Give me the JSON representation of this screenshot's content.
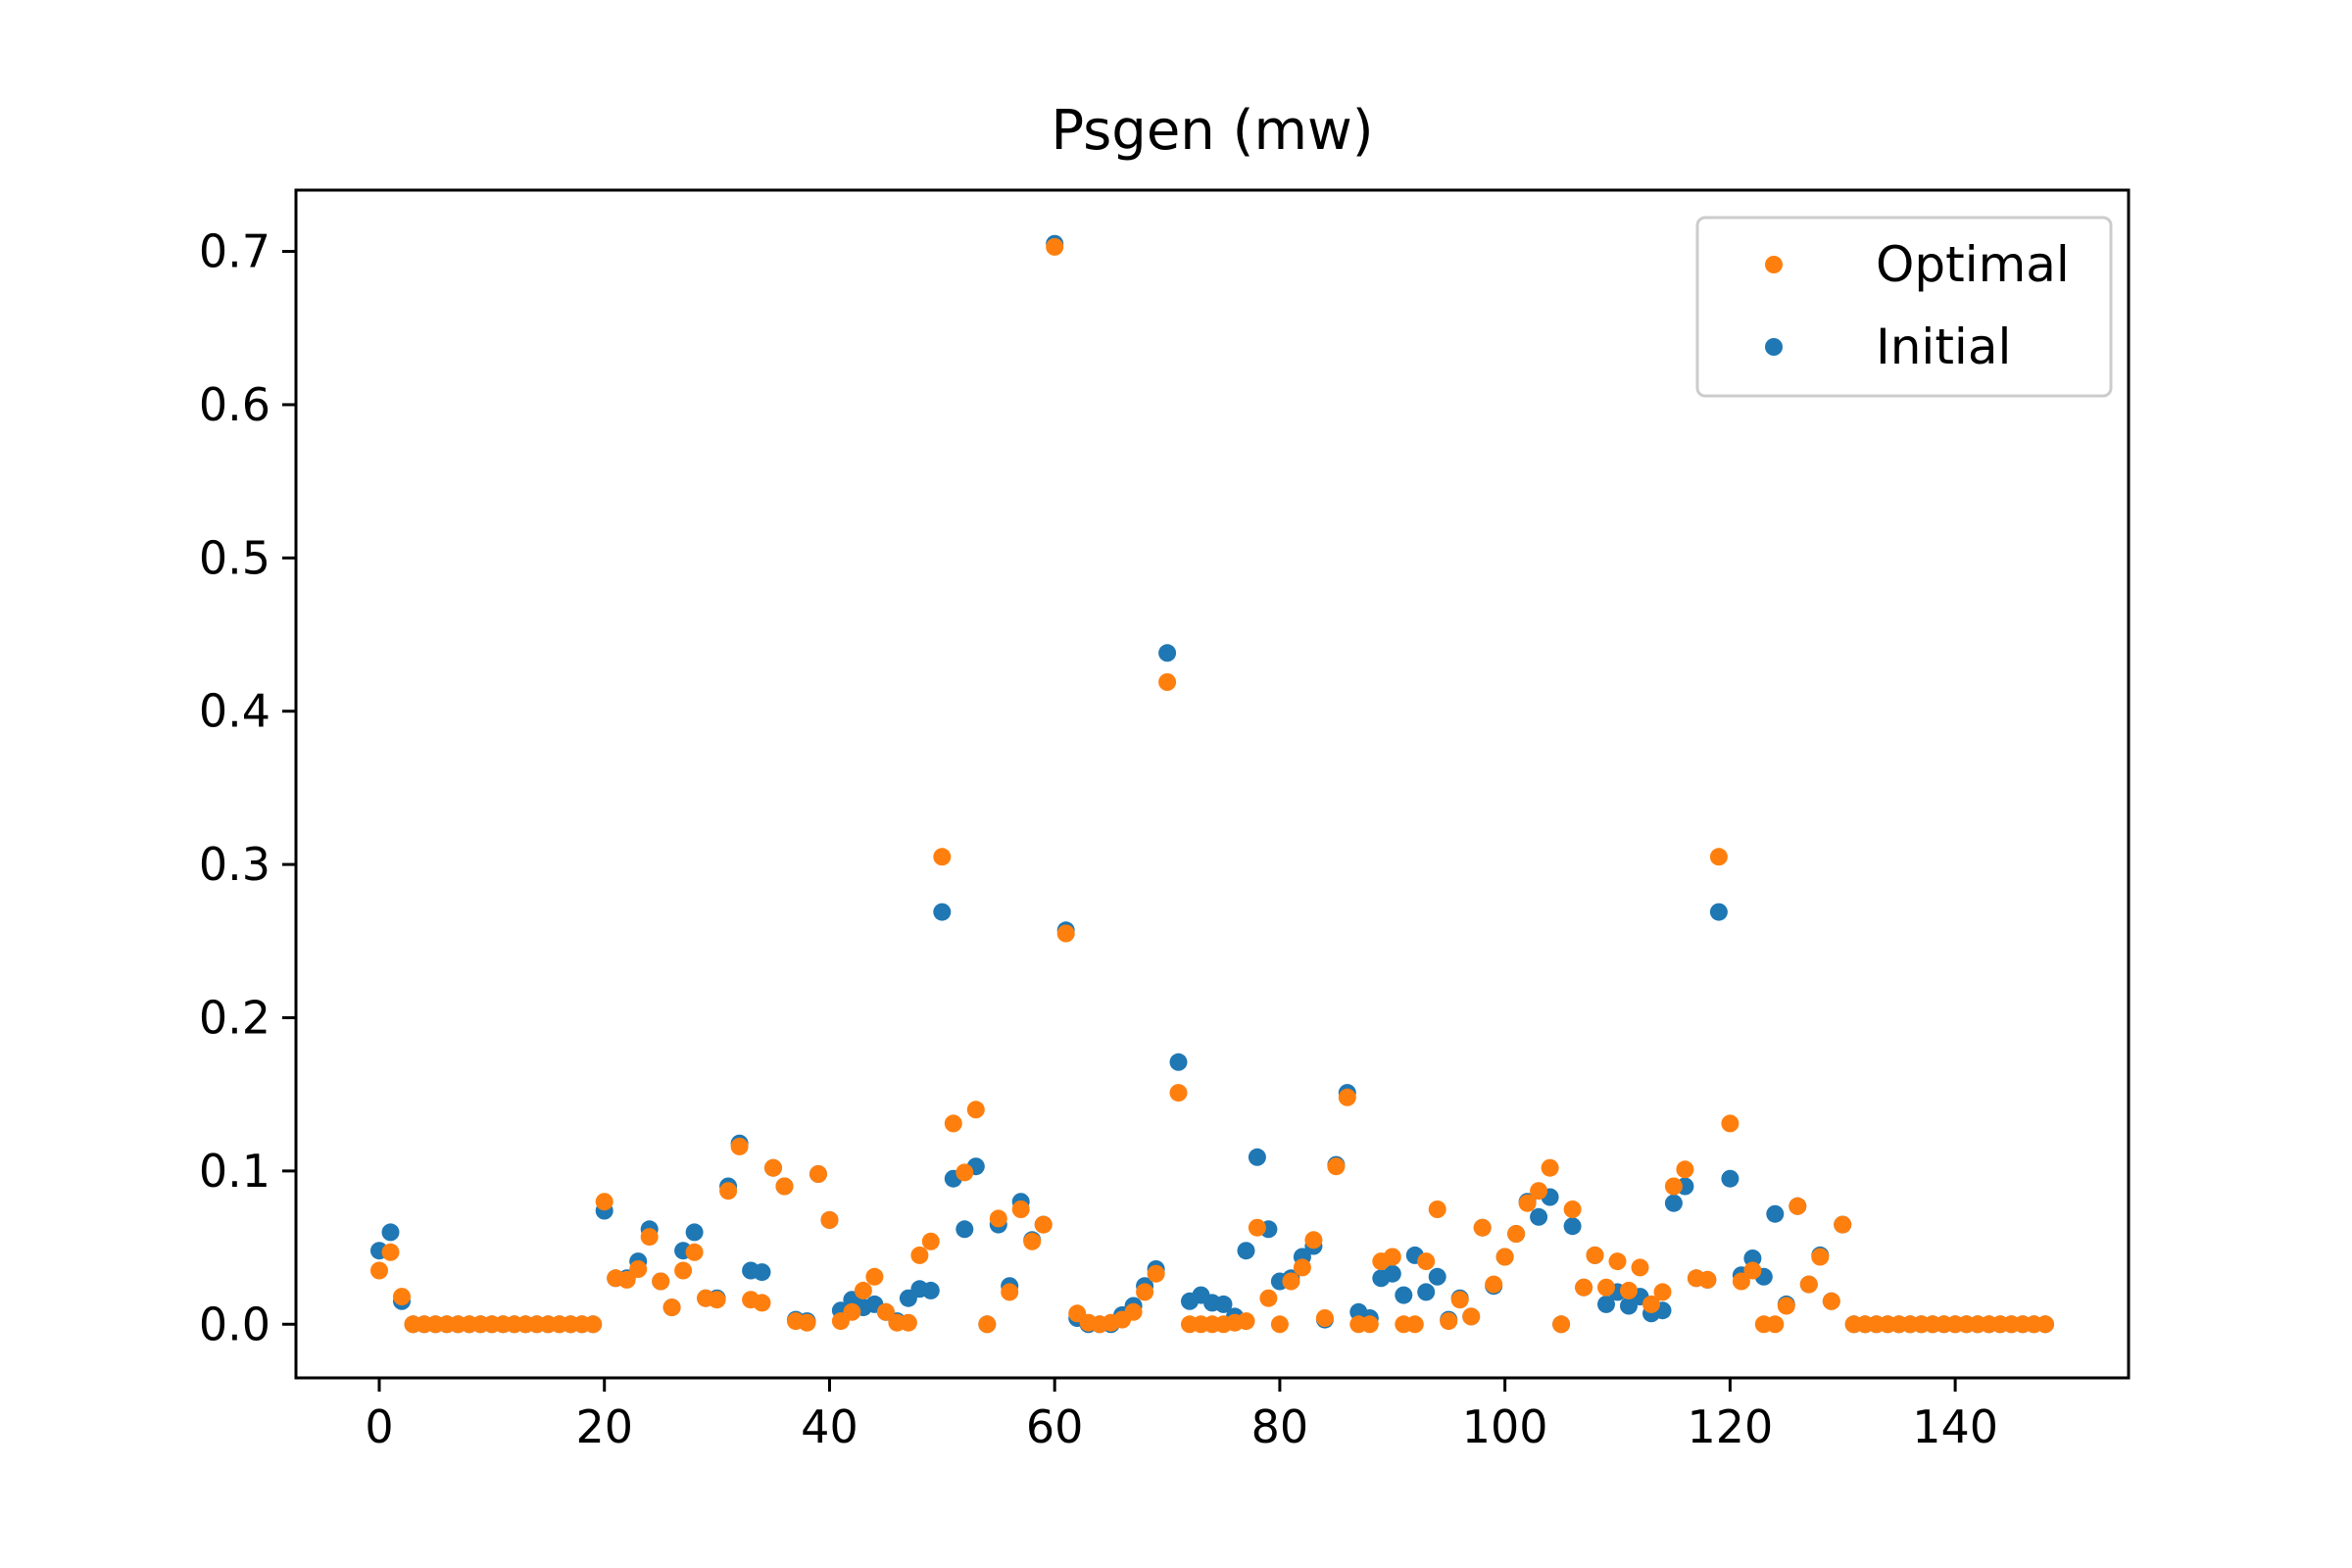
{
  "chart_data": {
    "type": "scatter",
    "title": "Psgen (mw)",
    "xlabel": "",
    "ylabel": "",
    "xlim": [
      -7.4,
      155.4
    ],
    "ylim": [
      -0.035,
      0.74
    ],
    "xticks": [
      0,
      20,
      40,
      60,
      80,
      100,
      120,
      140
    ],
    "yticks": [
      0.0,
      0.1,
      0.2,
      0.3,
      0.4,
      0.5,
      0.6,
      0.7
    ],
    "xtick_labels": [
      "0",
      "20",
      "40",
      "60",
      "80",
      "100",
      "120",
      "140"
    ],
    "ytick_labels": [
      "0.0",
      "0.1",
      "0.2",
      "0.3",
      "0.4",
      "0.5",
      "0.6",
      "0.7"
    ],
    "grid": false,
    "legend_position": "top-right",
    "series": [
      {
        "name": "Initial",
        "color": "#1f77b4",
        "x": [
          0,
          1,
          2,
          3,
          4,
          5,
          6,
          7,
          8,
          9,
          10,
          11,
          12,
          13,
          14,
          15,
          16,
          17,
          18,
          19,
          20,
          21,
          22,
          23,
          24,
          25,
          26,
          27,
          28,
          29,
          30,
          31,
          32,
          33,
          34,
          35,
          36,
          37,
          38,
          39,
          40,
          41,
          42,
          43,
          44,
          45,
          46,
          47,
          48,
          49,
          50,
          51,
          52,
          53,
          54,
          55,
          56,
          57,
          58,
          59,
          60,
          61,
          62,
          63,
          64,
          65,
          66,
          67,
          68,
          69,
          70,
          71,
          72,
          73,
          74,
          75,
          76,
          77,
          78,
          79,
          80,
          81,
          82,
          83,
          84,
          85,
          86,
          87,
          88,
          89,
          90,
          91,
          92,
          93,
          94,
          95,
          96,
          97,
          98,
          99,
          100,
          101,
          102,
          103,
          104,
          105,
          106,
          107,
          108,
          109,
          110,
          111,
          112,
          113,
          114,
          115,
          116,
          117,
          118,
          119,
          120,
          121,
          122,
          123,
          124,
          125,
          126,
          127,
          128,
          129,
          130,
          131,
          132,
          133,
          134,
          135,
          136,
          137,
          138,
          139,
          140,
          141,
          142,
          143,
          144,
          145,
          146,
          147,
          148
        ],
        "y": [
          0.048,
          0.06,
          0.015,
          0,
          0,
          0,
          0,
          0,
          0,
          0,
          0,
          0,
          0,
          0,
          0,
          0,
          0,
          0,
          0,
          0,
          0.074,
          0.03,
          0.03,
          0.041,
          0.062,
          0.028,
          0.011,
          0.048,
          0.06,
          0.017,
          0.017,
          0.09,
          0.118,
          0.035,
          0.034,
          0.102,
          0.09,
          0.003,
          0.002,
          0.098,
          0.068,
          0.009,
          0.016,
          0.011,
          0.013,
          0.008,
          0.002,
          0.017,
          0.023,
          0.022,
          0.269,
          0.095,
          0.062,
          0.103,
          0,
          0.065,
          0.025,
          0.08,
          0.055,
          0.065,
          0.705,
          0.257,
          0.004,
          0,
          0,
          0,
          0.006,
          0.012,
          0.025,
          0.036,
          0.438,
          0.171,
          0.015,
          0.019,
          0.014,
          0.013,
          0.005,
          0.048,
          0.109,
          0.062,
          0.028,
          0.03,
          0.044,
          0.051,
          0.003,
          0.104,
          0.151,
          0.008,
          0.004,
          0.03,
          0.033,
          0.019,
          0.045,
          0.021,
          0.031,
          0.003,
          0.017,
          0.005,
          0.063,
          0.025,
          0.044,
          0.059,
          0.08,
          0.07,
          0.083,
          0,
          0.064,
          0.024,
          0.045,
          0.013,
          0.021,
          0.012,
          0.018,
          0.007,
          0.009,
          0.079,
          0.09,
          0.03,
          0.029,
          0.269,
          0.095,
          0.032,
          0.043,
          0.031,
          0.072,
          0.013,
          0.077,
          0.026,
          0.045,
          0.015,
          0.065,
          0,
          0,
          0,
          0,
          0,
          0,
          0,
          0,
          0,
          0,
          0,
          0,
          0,
          0,
          0,
          0,
          0,
          0
        ]
      },
      {
        "name": "Optimal",
        "color": "#ff7f0e",
        "x": [
          0,
          1,
          2,
          3,
          4,
          5,
          6,
          7,
          8,
          9,
          10,
          11,
          12,
          13,
          14,
          15,
          16,
          17,
          18,
          19,
          20,
          21,
          22,
          23,
          24,
          25,
          26,
          27,
          28,
          29,
          30,
          31,
          32,
          33,
          34,
          35,
          36,
          37,
          38,
          39,
          40,
          41,
          42,
          43,
          44,
          45,
          46,
          47,
          48,
          49,
          50,
          51,
          52,
          53,
          54,
          55,
          56,
          57,
          58,
          59,
          60,
          61,
          62,
          63,
          64,
          65,
          66,
          67,
          68,
          69,
          70,
          71,
          72,
          73,
          74,
          75,
          76,
          77,
          78,
          79,
          80,
          81,
          82,
          83,
          84,
          85,
          86,
          87,
          88,
          89,
          90,
          91,
          92,
          93,
          94,
          95,
          96,
          97,
          98,
          99,
          100,
          101,
          102,
          103,
          104,
          105,
          106,
          107,
          108,
          109,
          110,
          111,
          112,
          113,
          114,
          115,
          116,
          117,
          118,
          119,
          120,
          121,
          122,
          123,
          124,
          125,
          126,
          127,
          128,
          129,
          130,
          131,
          132,
          133,
          134,
          135,
          136,
          137,
          138,
          139,
          140,
          141,
          142,
          143,
          144,
          145,
          146,
          147,
          148
        ],
        "y": [
          0.035,
          0.047,
          0.018,
          0,
          0,
          0,
          0,
          0,
          0,
          0,
          0,
          0,
          0,
          0,
          0,
          0,
          0,
          0,
          0,
          0,
          0.08,
          0.03,
          0.029,
          0.036,
          0.057,
          0.028,
          0.011,
          0.035,
          0.047,
          0.017,
          0.016,
          0.087,
          0.116,
          0.016,
          0.014,
          0.102,
          0.09,
          0.002,
          0.001,
          0.098,
          0.068,
          0.002,
          0.008,
          0.022,
          0.031,
          0.008,
          0.001,
          0.001,
          0.045,
          0.054,
          0.305,
          0.131,
          0.099,
          0.14,
          0,
          0.069,
          0.021,
          0.075,
          0.054,
          0.065,
          0.703,
          0.255,
          0.007,
          0.001,
          0,
          0.001,
          0.003,
          0.008,
          0.021,
          0.033,
          0.419,
          0.151,
          0,
          0,
          0,
          0,
          0.001,
          0.002,
          0.063,
          0.017,
          0,
          0.028,
          0.037,
          0.055,
          0.004,
          0.103,
          0.148,
          0,
          0,
          0.041,
          0.044,
          0,
          0,
          0.041,
          0.075,
          0.002,
          0.016,
          0.005,
          0.063,
          0.026,
          0.044,
          0.059,
          0.079,
          0.087,
          0.102,
          0,
          0.075,
          0.024,
          0.045,
          0.024,
          0.041,
          0.022,
          0.037,
          0.013,
          0.021,
          0.09,
          0.101,
          0.03,
          0.029,
          0.305,
          0.131,
          0.028,
          0.035,
          0,
          0,
          0.012,
          0.077,
          0.026,
          0.044,
          0.015,
          0.065,
          0,
          0,
          0,
          0,
          0,
          0,
          0,
          0,
          0,
          0,
          0,
          0,
          0,
          0,
          0,
          0,
          0,
          0
        ]
      }
    ]
  }
}
